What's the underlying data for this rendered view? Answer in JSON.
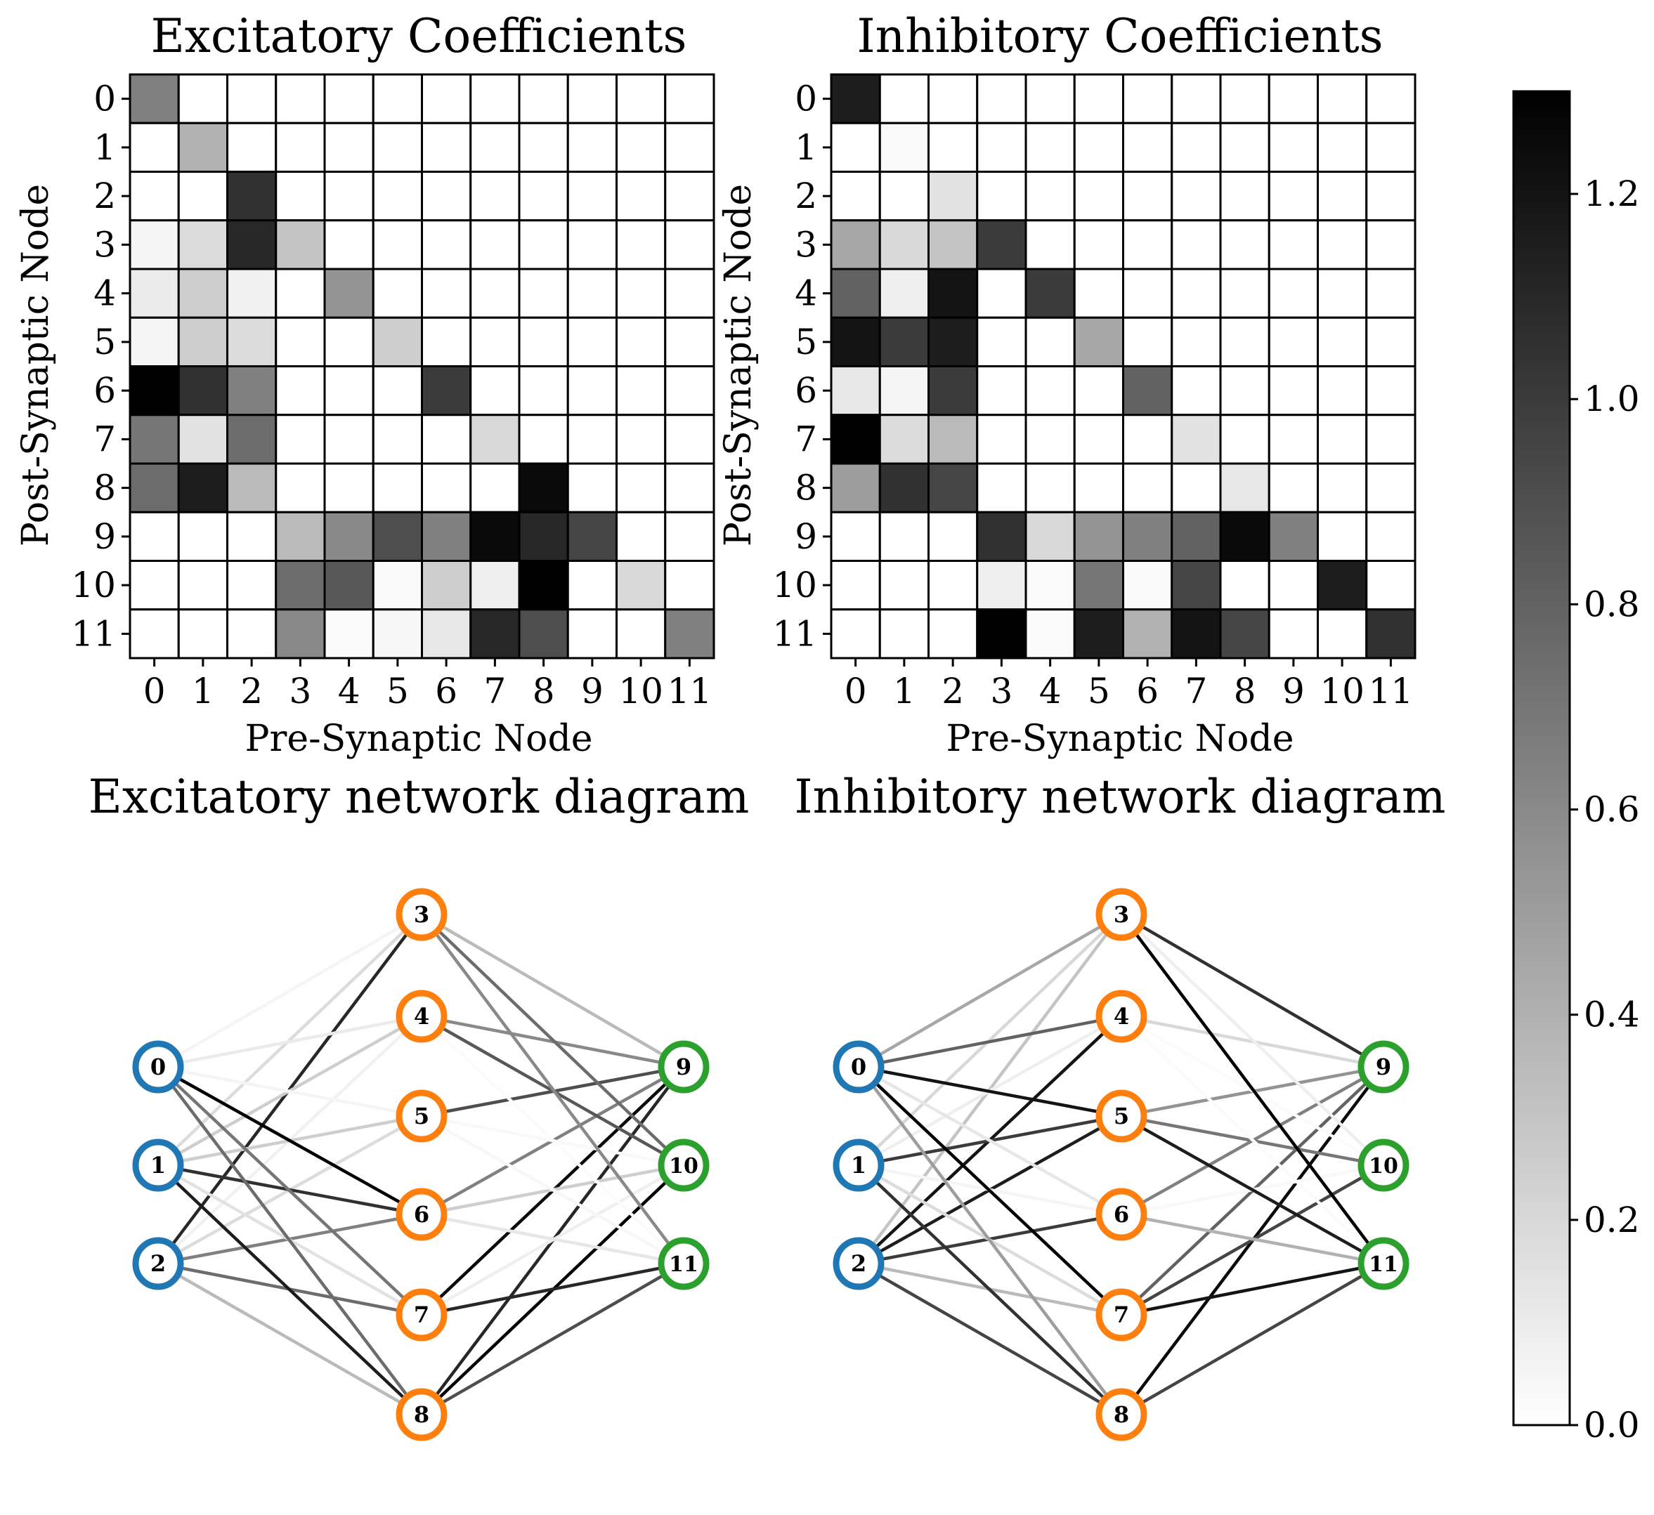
{
  "figure": {
    "cmap": {
      "name": "Greys",
      "vmin": 0.0,
      "vmax": 1.3,
      "ticks": [
        0.0,
        0.2,
        0.4,
        0.6,
        0.8,
        1.0,
        1.2
      ],
      "tick_labels": [
        "0.0",
        "0.2",
        "0.4",
        "0.6",
        "0.8",
        "1.0",
        "1.2"
      ]
    },
    "layer_colors": {
      "input": "#1f77b4",
      "hidden": "#ff7f0e",
      "output": "#2ca02c"
    }
  },
  "chart_data": [
    {
      "type": "heatmap",
      "title": "Excitatory Coefficients",
      "xlabel": "Pre-Synaptic Node",
      "ylabel": "Post-Synaptic Node",
      "x_ticks": [
        "0",
        "1",
        "2",
        "3",
        "4",
        "5",
        "6",
        "7",
        "8",
        "9",
        "10",
        "11"
      ],
      "y_ticks": [
        "0",
        "1",
        "2",
        "3",
        "4",
        "5",
        "6",
        "7",
        "8",
        "9",
        "10",
        "11"
      ],
      "values": [
        [
          0.65,
          0,
          0,
          0,
          0,
          0,
          0,
          0,
          0,
          0,
          0,
          0
        ],
        [
          0,
          0.4,
          0,
          0,
          0,
          0,
          0,
          0,
          0,
          0,
          0,
          0
        ],
        [
          0,
          0,
          1.05,
          0,
          0,
          0,
          0,
          0,
          0,
          0,
          0,
          0
        ],
        [
          0.05,
          0.18,
          1.1,
          0.3,
          0,
          0,
          0,
          0,
          0,
          0,
          0,
          0
        ],
        [
          0.1,
          0.25,
          0.07,
          0,
          0.55,
          0,
          0,
          0,
          0,
          0,
          0,
          0
        ],
        [
          0.05,
          0.25,
          0.18,
          0,
          0,
          0.25,
          0,
          0,
          0,
          0,
          0,
          0
        ],
        [
          1.3,
          1.05,
          0.65,
          0,
          0,
          0,
          1.0,
          0,
          0,
          0,
          0,
          0
        ],
        [
          0.7,
          0.15,
          0.75,
          0,
          0,
          0,
          0,
          0.2,
          0,
          0,
          0,
          0
        ],
        [
          0.75,
          1.15,
          0.35,
          0,
          0,
          0,
          0,
          0,
          1.25,
          0,
          0,
          0
        ],
        [
          0,
          0,
          0,
          0.35,
          0.6,
          0.9,
          0.65,
          1.25,
          1.1,
          0.95,
          0,
          0
        ],
        [
          0,
          0,
          0,
          0.75,
          0.85,
          0.03,
          0.25,
          0.08,
          1.3,
          0,
          0.2,
          0
        ],
        [
          0,
          0,
          0,
          0.6,
          0.02,
          0.04,
          0.12,
          1.1,
          0.9,
          0,
          0,
          0.65
        ]
      ]
    },
    {
      "type": "heatmap",
      "title": "Inhibitory Coefficients",
      "xlabel": "Pre-Synaptic Node",
      "ylabel": "Post-Synaptic Node",
      "x_ticks": [
        "0",
        "1",
        "2",
        "3",
        "4",
        "5",
        "6",
        "7",
        "8",
        "9",
        "10",
        "11"
      ],
      "y_ticks": [
        "0",
        "1",
        "2",
        "3",
        "4",
        "5",
        "6",
        "7",
        "8",
        "9",
        "10",
        "11"
      ],
      "values": [
        [
          1.15,
          0,
          0,
          0,
          0,
          0,
          0,
          0,
          0,
          0,
          0,
          0
        ],
        [
          0,
          0.03,
          0,
          0,
          0,
          0,
          0,
          0,
          0,
          0,
          0,
          0
        ],
        [
          0,
          0,
          0.15,
          0,
          0,
          0,
          0,
          0,
          0,
          0,
          0,
          0
        ],
        [
          0.45,
          0.2,
          0.3,
          1.0,
          0,
          0,
          0,
          0,
          0,
          0,
          0,
          0
        ],
        [
          0.8,
          0.08,
          1.2,
          0,
          1.0,
          0,
          0,
          0,
          0,
          0,
          0,
          0
        ],
        [
          1.2,
          1.0,
          1.15,
          0,
          0,
          0.45,
          0,
          0,
          0,
          0,
          0,
          0
        ],
        [
          0.12,
          0.05,
          1.0,
          0,
          0,
          0,
          0.8,
          0,
          0,
          0,
          0,
          0
        ],
        [
          1.3,
          0.18,
          0.35,
          0,
          0,
          0,
          0,
          0.15,
          0,
          0,
          0,
          0
        ],
        [
          0.5,
          1.05,
          0.95,
          0,
          0,
          0,
          0,
          0,
          0.12,
          0,
          0,
          0
        ],
        [
          0,
          0,
          0,
          1.05,
          0.2,
          0.55,
          0.65,
          0.8,
          1.25,
          0.65,
          0,
          0
        ],
        [
          0,
          0,
          0,
          0.08,
          0.02,
          0.7,
          0.03,
          0.95,
          0,
          0,
          1.15,
          0
        ],
        [
          0,
          0,
          0,
          1.3,
          0.02,
          1.15,
          0.4,
          1.2,
          0.95,
          0,
          0,
          1.05
        ]
      ]
    },
    {
      "type": "network",
      "title": "Excitatory network diagram",
      "layers": {
        "input": [
          "0",
          "1",
          "2"
        ],
        "hidden": [
          "3",
          "4",
          "5",
          "6",
          "7",
          "8"
        ],
        "output": [
          "9",
          "10",
          "11"
        ]
      },
      "edges": [
        {
          "from": 0,
          "to": 3,
          "w": 0.05
        },
        {
          "from": 1,
          "to": 3,
          "w": 0.18
        },
        {
          "from": 2,
          "to": 3,
          "w": 1.1
        },
        {
          "from": 0,
          "to": 4,
          "w": 0.1
        },
        {
          "from": 1,
          "to": 4,
          "w": 0.25
        },
        {
          "from": 2,
          "to": 4,
          "w": 0.07
        },
        {
          "from": 0,
          "to": 5,
          "w": 0.05
        },
        {
          "from": 1,
          "to": 5,
          "w": 0.25
        },
        {
          "from": 2,
          "to": 5,
          "w": 0.18
        },
        {
          "from": 0,
          "to": 6,
          "w": 1.3
        },
        {
          "from": 1,
          "to": 6,
          "w": 1.05
        },
        {
          "from": 2,
          "to": 6,
          "w": 0.65
        },
        {
          "from": 0,
          "to": 7,
          "w": 0.7
        },
        {
          "from": 1,
          "to": 7,
          "w": 0.15
        },
        {
          "from": 2,
          "to": 7,
          "w": 0.75
        },
        {
          "from": 0,
          "to": 8,
          "w": 0.75
        },
        {
          "from": 1,
          "to": 8,
          "w": 1.15
        },
        {
          "from": 2,
          "to": 8,
          "w": 0.35
        },
        {
          "from": 3,
          "to": 9,
          "w": 0.35
        },
        {
          "from": 4,
          "to": 9,
          "w": 0.6
        },
        {
          "from": 5,
          "to": 9,
          "w": 0.9
        },
        {
          "from": 6,
          "to": 9,
          "w": 0.65
        },
        {
          "from": 7,
          "to": 9,
          "w": 1.25
        },
        {
          "from": 8,
          "to": 9,
          "w": 1.1
        },
        {
          "from": 3,
          "to": 10,
          "w": 0.75
        },
        {
          "from": 4,
          "to": 10,
          "w": 0.85
        },
        {
          "from": 5,
          "to": 10,
          "w": 0.03
        },
        {
          "from": 6,
          "to": 10,
          "w": 0.25
        },
        {
          "from": 7,
          "to": 10,
          "w": 0.08
        },
        {
          "from": 8,
          "to": 10,
          "w": 1.3
        },
        {
          "from": 3,
          "to": 11,
          "w": 0.6
        },
        {
          "from": 4,
          "to": 11,
          "w": 0.02
        },
        {
          "from": 5,
          "to": 11,
          "w": 0.04
        },
        {
          "from": 6,
          "to": 11,
          "w": 0.12
        },
        {
          "from": 7,
          "to": 11,
          "w": 1.1
        },
        {
          "from": 8,
          "to": 11,
          "w": 0.9
        }
      ]
    },
    {
      "type": "network",
      "title": "Inhibitory network diagram",
      "layers": {
        "input": [
          "0",
          "1",
          "2"
        ],
        "hidden": [
          "3",
          "4",
          "5",
          "6",
          "7",
          "8"
        ],
        "output": [
          "9",
          "10",
          "11"
        ]
      },
      "edges": [
        {
          "from": 0,
          "to": 3,
          "w": 0.45
        },
        {
          "from": 1,
          "to": 3,
          "w": 0.2
        },
        {
          "from": 2,
          "to": 3,
          "w": 0.3
        },
        {
          "from": 0,
          "to": 4,
          "w": 0.8
        },
        {
          "from": 1,
          "to": 4,
          "w": 0.08
        },
        {
          "from": 2,
          "to": 4,
          "w": 1.2
        },
        {
          "from": 0,
          "to": 5,
          "w": 1.2
        },
        {
          "from": 1,
          "to": 5,
          "w": 1.0
        },
        {
          "from": 2,
          "to": 5,
          "w": 1.15
        },
        {
          "from": 0,
          "to": 6,
          "w": 0.12
        },
        {
          "from": 1,
          "to": 6,
          "w": 0.05
        },
        {
          "from": 2,
          "to": 6,
          "w": 1.0
        },
        {
          "from": 0,
          "to": 7,
          "w": 1.3
        },
        {
          "from": 1,
          "to": 7,
          "w": 0.18
        },
        {
          "from": 2,
          "to": 7,
          "w": 0.35
        },
        {
          "from": 0,
          "to": 8,
          "w": 0.5
        },
        {
          "from": 1,
          "to": 8,
          "w": 1.05
        },
        {
          "from": 2,
          "to": 8,
          "w": 0.95
        },
        {
          "from": 3,
          "to": 9,
          "w": 1.05
        },
        {
          "from": 4,
          "to": 9,
          "w": 0.2
        },
        {
          "from": 5,
          "to": 9,
          "w": 0.55
        },
        {
          "from": 6,
          "to": 9,
          "w": 0.65
        },
        {
          "from": 7,
          "to": 9,
          "w": 0.8
        },
        {
          "from": 8,
          "to": 9,
          "w": 1.25
        },
        {
          "from": 3,
          "to": 10,
          "w": 0.08
        },
        {
          "from": 4,
          "to": 10,
          "w": 0.02
        },
        {
          "from": 5,
          "to": 10,
          "w": 0.7
        },
        {
          "from": 6,
          "to": 10,
          "w": 0.03
        },
        {
          "from": 7,
          "to": 10,
          "w": 0.95
        },
        {
          "from": 8,
          "to": 10,
          "w": 0
        },
        {
          "from": 3,
          "to": 11,
          "w": 1.3
        },
        {
          "from": 4,
          "to": 11,
          "w": 0.02
        },
        {
          "from": 5,
          "to": 11,
          "w": 1.15
        },
        {
          "from": 6,
          "to": 11,
          "w": 0.4
        },
        {
          "from": 7,
          "to": 11,
          "w": 1.2
        },
        {
          "from": 8,
          "to": 11,
          "w": 0.95
        }
      ]
    }
  ]
}
